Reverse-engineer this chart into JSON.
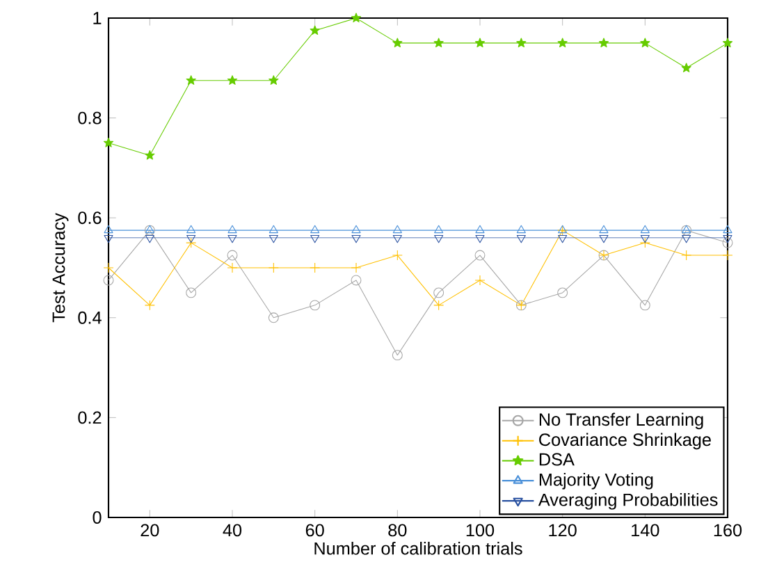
{
  "chart_data": {
    "type": "line",
    "xlabel": "Number of calibration trials",
    "ylabel": "Test Accuracy",
    "x": [
      10,
      20,
      30,
      40,
      50,
      60,
      70,
      80,
      90,
      100,
      110,
      120,
      130,
      140,
      150,
      160
    ],
    "series": [
      {
        "name": "No Transfer Learning",
        "color": "#a6a6a6",
        "marker": "circle",
        "values": [
          0.475,
          0.575,
          0.45,
          0.525,
          0.4,
          0.425,
          0.475,
          0.325,
          0.45,
          0.525,
          0.425,
          0.45,
          0.525,
          0.425,
          0.575,
          0.55
        ]
      },
      {
        "name": "Covariance Shrinkage",
        "color": "#ffc000",
        "marker": "cross",
        "values": [
          0.5,
          0.425,
          0.55,
          0.5,
          0.5,
          0.5,
          0.5,
          0.525,
          0.425,
          0.475,
          0.425,
          0.575,
          0.525,
          0.55,
          0.525,
          0.525
        ]
      },
      {
        "name": "DSA",
        "color": "#66cc00",
        "marker": "star",
        "values": [
          0.75,
          0.725,
          0.875,
          0.875,
          0.875,
          0.975,
          1,
          0.95,
          0.95,
          0.95,
          0.95,
          0.95,
          0.95,
          0.95,
          0.9,
          0.95
        ]
      },
      {
        "name": "Majority Voting",
        "color": "#4a90d9",
        "marker": "triangle",
        "values": [
          0.575,
          0.575,
          0.575,
          0.575,
          0.575,
          0.575,
          0.575,
          0.575,
          0.575,
          0.575,
          0.575,
          0.575,
          0.575,
          0.575,
          0.575,
          0.575
        ]
      },
      {
        "name": "Averaging Probabilities",
        "color": "#2850a0",
        "marker": "triangle-down",
        "values": [
          0.56,
          0.56,
          0.56,
          0.56,
          0.56,
          0.56,
          0.56,
          0.56,
          0.56,
          0.56,
          0.56,
          0.56,
          0.56,
          0.56,
          0.56,
          0.56
        ]
      }
    ],
    "xlim": [
      10,
      160
    ],
    "ylim": [
      0,
      1
    ],
    "xticks": [
      20,
      40,
      60,
      80,
      100,
      120,
      140,
      160
    ],
    "yticks": [
      0,
      0.2,
      0.4,
      0.6,
      0.8,
      1
    ],
    "grid": false,
    "legend": "bottom right",
    "line_style": "solid"
  }
}
